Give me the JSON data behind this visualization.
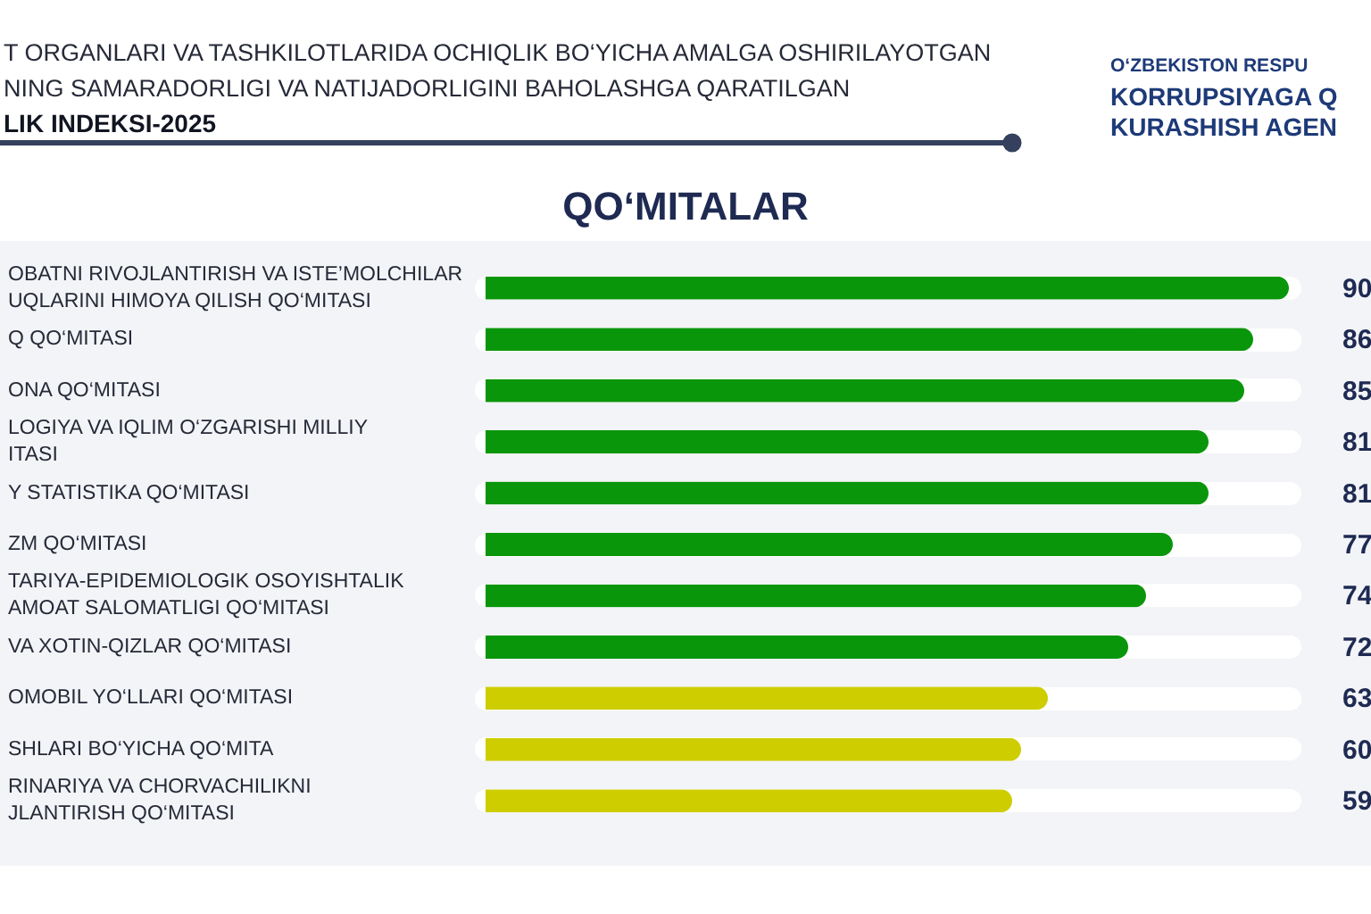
{
  "chart_data": {
    "type": "bar",
    "orientation": "horizontal",
    "title": "QO‘MITALAR",
    "annotations": [
      "T ORGANLARI VA TASHKILOTLARIDA OCHIQLIK BO‘YICHA AMALGA OSHIRILAYOTGAN",
      "NING SAMARADORLIGI VA NATIJADORLIGINI BAHOLASHGA QARATILGAN",
      "LIK INDEKSI-2025",
      "O‘ZBEKISTON RESPU",
      "KORRUPSIYAGA Q",
      "KURASHISH AGEN"
    ],
    "categories": [
      "OBATNI RIVOJLANTIRISH VA ISTE’MOLCHILAR\nUQLARINI HIMOYA QILISH QO‘MITASI",
      "Q QO‘MITASI",
      "ONA QO‘MITASI",
      "LOGIYA VA IQLIM O‘ZGARISHI MILLIY\nITASI",
      "Y STATISTIKA QO‘MITASI",
      "ZM QO‘MITASI",
      "TARIYA-EPIDEMIOLOGIK OSOYISHTALIK\nAMOAT SALOMATLIGI QO‘MITASI",
      "VA XOTIN-QIZLAR QO‘MITASI",
      "OMOBIL YO‘LLARI QO‘MITASI",
      "SHLARI BO‘YICHA QO‘MITA",
      "RINARIYA VA CHORVACHILIKNI\nJLANTIRISH QO‘MITASI"
    ],
    "values": [
      90,
      86,
      85,
      81,
      81,
      77,
      74,
      72,
      63,
      60,
      59
    ],
    "colors": [
      "#0a960a",
      "#0a960a",
      "#0a960a",
      "#0a960a",
      "#0a960a",
      "#0a960a",
      "#0a960a",
      "#0a960a",
      "#cdcd00",
      "#cdcd00",
      "#cdcd00"
    ],
    "grid": "y",
    "tick_labels": "y",
    "data_labels": true
  }
}
